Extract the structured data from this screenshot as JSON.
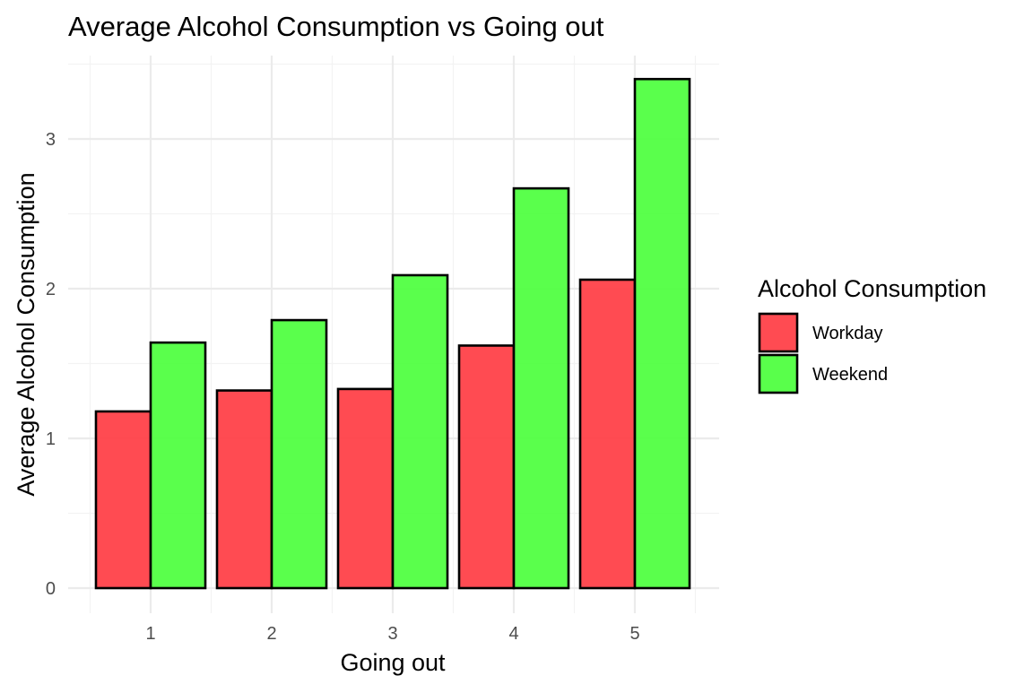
{
  "chart_data": {
    "type": "bar",
    "title": "Average Alcohol Consumption vs Going out",
    "xlabel": "Going out",
    "ylabel": "Average Alcohol Consumption",
    "categories": [
      "1",
      "2",
      "3",
      "4",
      "5"
    ],
    "series": [
      {
        "name": "Workday",
        "color": "#ff3d45",
        "values": [
          1.18,
          1.32,
          1.33,
          1.62,
          2.06
        ]
      },
      {
        "name": "Weekend",
        "color": "#4cff3d",
        "values": [
          1.64,
          1.79,
          2.09,
          2.67,
          3.4
        ]
      }
    ],
    "ylim": [
      0,
      3.6
    ],
    "yticks": [
      "0",
      "1",
      "2",
      "3"
    ],
    "grid": true,
    "legend": {
      "title": "Alcohol Consumption",
      "placement": "right"
    }
  }
}
